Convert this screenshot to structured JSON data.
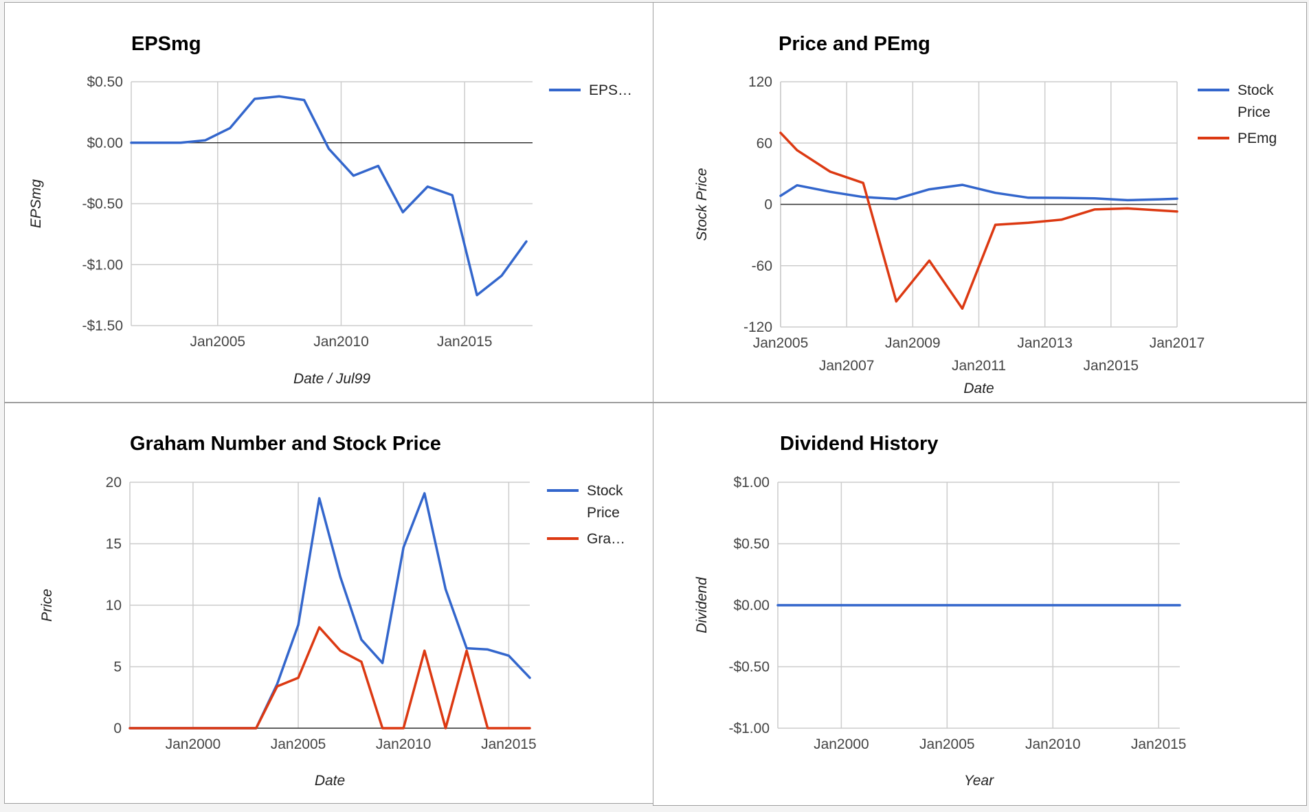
{
  "colors": {
    "blue": "#3366cc",
    "red": "#dc3912"
  },
  "chart_data": [
    {
      "id": "epsmg",
      "type": "line",
      "title": "EPSmg",
      "xlabel": "Date / Jul99",
      "ylabel": "EPSmg",
      "xaxis": {
        "min": 2001.5,
        "max": 2017.75,
        "ticks": [
          2005,
          2010,
          2015
        ],
        "tick_labels": [
          "Jan2005",
          "Jan2010",
          "Jan2015"
        ]
      },
      "yaxis": {
        "min": -1.5,
        "max": 0.5,
        "ticks": [
          0.5,
          0,
          -0.5,
          -1,
          -1.5
        ],
        "tick_labels": [
          "$0.50",
          "$0.00",
          "-$0.50",
          "-$1.00",
          "-$1.50"
        ],
        "baseline": 0
      },
      "legend": {
        "position": "right",
        "items": [
          {
            "label": "EPS…",
            "color": "#3366cc"
          }
        ]
      },
      "series": [
        {
          "name": "EPS…",
          "color": "#3366cc",
          "x": [
            2001.5,
            2002.5,
            2003.5,
            2004.5,
            2005.5,
            2006.5,
            2007.5,
            2008.5,
            2009.5,
            2010.5,
            2011.5,
            2012.5,
            2013.5,
            2014.5,
            2015.5,
            2016.5,
            2017.5
          ],
          "y": [
            0,
            0,
            0,
            0.02,
            0.12,
            0.36,
            0.38,
            0.35,
            -0.05,
            -0.27,
            -0.19,
            -0.57,
            -0.36,
            -0.43,
            -1.25,
            -1.09,
            -0.81
          ]
        }
      ]
    },
    {
      "id": "price-pemg",
      "type": "line",
      "title": "Price and PEmg",
      "xlabel": "Date",
      "ylabel": "Stock Price",
      "xaxis": {
        "min": 2005,
        "max": 2017,
        "ticks": [
          2005,
          2007,
          2009,
          2011,
          2013,
          2015,
          2017
        ],
        "tick_labels": [
          "Jan2005",
          "Jan2007",
          "Jan2009",
          "Jan2011",
          "Jan2013",
          "Jan2015",
          "Jan2017"
        ]
      },
      "yaxis": {
        "min": -120,
        "max": 120,
        "ticks": [
          120,
          60,
          0,
          -60,
          -120
        ],
        "tick_labels": [
          "120",
          "60",
          "0",
          "-60",
          "-120"
        ],
        "baseline": 0
      },
      "legend": {
        "position": "right",
        "items": [
          {
            "label_lines": [
              "Stock",
              "Price"
            ],
            "color": "#3366cc"
          },
          {
            "label_lines": [
              "PEmg"
            ],
            "color": "#dc3912"
          }
        ]
      },
      "series": [
        {
          "name": "Stock Price",
          "color": "#3366cc",
          "x": [
            2005,
            2005.5,
            2006.5,
            2007.5,
            2008.5,
            2009.5,
            2010.5,
            2011.5,
            2012.5,
            2013.5,
            2014.5,
            2015.5,
            2016.5,
            2017
          ],
          "y": [
            8.4,
            18.7,
            12.3,
            7.2,
            5.3,
            14.7,
            19.1,
            11.3,
            6.5,
            6.4,
            5.9,
            4.1,
            5.0,
            5.6
          ]
        },
        {
          "name": "PEmg",
          "color": "#dc3912",
          "x": [
            2005,
            2005.5,
            2006.5,
            2007.5,
            2008.5,
            2009.5,
            2010.5,
            2011.5,
            2012.5,
            2013.5,
            2014.5,
            2015.5,
            2016.5,
            2017
          ],
          "y": [
            70,
            53,
            32,
            21,
            -95,
            -55,
            -102,
            -20,
            -18,
            -15,
            -5,
            -4,
            -6,
            -7
          ]
        }
      ]
    },
    {
      "id": "graham",
      "type": "line",
      "title": "Graham Number and Stock Price",
      "xlabel": "Date",
      "ylabel": "Price",
      "xaxis": {
        "min": 1997,
        "max": 2016,
        "ticks": [
          2000,
          2005,
          2010,
          2015
        ],
        "tick_labels": [
          "Jan2000",
          "Jan2005",
          "Jan2010",
          "Jan2015"
        ]
      },
      "yaxis": {
        "min": 0,
        "max": 20,
        "ticks": [
          20,
          15,
          10,
          5,
          0
        ],
        "tick_labels": [
          "20",
          "15",
          "10",
          "5",
          "0"
        ],
        "baseline": 0
      },
      "legend": {
        "position": "right",
        "items": [
          {
            "label_lines": [
              "Stock",
              "Price"
            ],
            "color": "#3366cc"
          },
          {
            "label_lines": [
              "Gra…"
            ],
            "color": "#dc3912"
          }
        ]
      },
      "series": [
        {
          "name": "Stock Price",
          "color": "#3366cc",
          "x": [
            1997,
            1998,
            1999,
            2000,
            2001,
            2002,
            2003,
            2004,
            2005,
            2006,
            2007,
            2008,
            2009,
            2010,
            2011,
            2012,
            2013,
            2014,
            2015,
            2016
          ],
          "y": [
            0,
            0,
            0,
            0,
            0,
            0,
            0,
            3.6,
            8.4,
            18.7,
            12.3,
            7.2,
            5.3,
            14.7,
            19.1,
            11.3,
            6.5,
            6.4,
            5.9,
            4.1
          ]
        },
        {
          "name": "Gra…",
          "color": "#dc3912",
          "x": [
            1997,
            1998,
            1999,
            2000,
            2001,
            2002,
            2003,
            2004,
            2005,
            2006,
            2007,
            2008,
            2009,
            2010,
            2011,
            2012,
            2013,
            2014,
            2015,
            2016
          ],
          "y": [
            0,
            0,
            0,
            0,
            0,
            0,
            0,
            3.4,
            4.1,
            8.2,
            6.3,
            5.4,
            0,
            0,
            6.3,
            0,
            6.3,
            0,
            0,
            0
          ]
        }
      ]
    },
    {
      "id": "dividend",
      "type": "line",
      "title": "Dividend History",
      "xlabel": "Year",
      "ylabel": "Dividend",
      "xaxis": {
        "min": 1997,
        "max": 2016,
        "ticks": [
          2000,
          2005,
          2010,
          2015
        ],
        "tick_labels": [
          "Jan2000",
          "Jan2005",
          "Jan2010",
          "Jan2015"
        ]
      },
      "yaxis": {
        "min": -1,
        "max": 1,
        "ticks": [
          1,
          0.5,
          0,
          -0.5,
          -1
        ],
        "tick_labels": [
          "$1.00",
          "$0.50",
          "$0.00",
          "-$0.50",
          "-$1.00"
        ],
        "baseline": null
      },
      "legend": {
        "position": "none",
        "items": []
      },
      "series": [
        {
          "color": "#3366cc",
          "x": [
            1997,
            2000,
            2005,
            2010,
            2015,
            2016
          ],
          "y": [
            0,
            0,
            0,
            0,
            0,
            0
          ]
        }
      ]
    }
  ]
}
